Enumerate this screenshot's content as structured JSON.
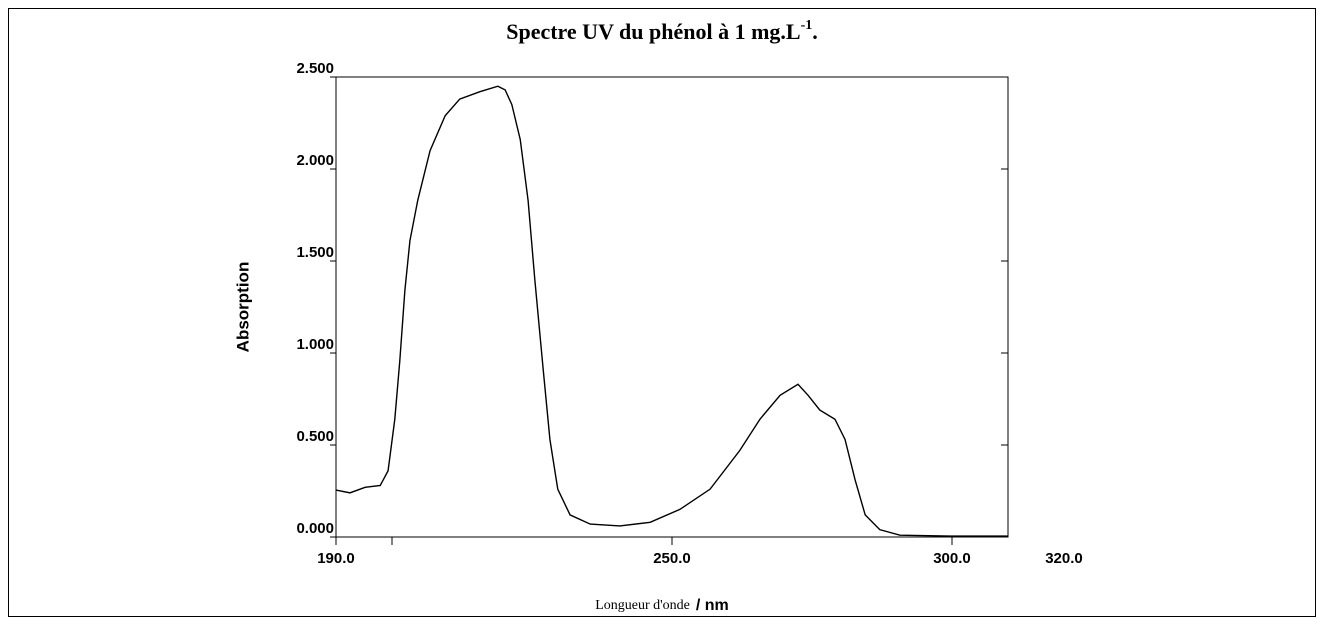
{
  "chart_data": {
    "type": "line",
    "title": {
      "text": "Spectre UV du phénol à 1 mg.L",
      "superscript": "-1",
      "end": "."
    },
    "xlabel": {
      "text": "Longueur d'onde",
      "unit": "/ nm"
    },
    "ylabel": "Absorption",
    "x": [
      190.0,
      192.5,
      195.2,
      197.9,
      199.3,
      200.5,
      201.4,
      202.3,
      203.2,
      204.6,
      206.8,
      209.5,
      212.1,
      215.7,
      218.9,
      220.2,
      221.4,
      222.9,
      224.3,
      225.5,
      227.0,
      228.2,
      229.6,
      231.8,
      235.4,
      240.7,
      246.1,
      251.4,
      256.8,
      262.1,
      265.7,
      269.3,
      272.5,
      274.3,
      276.4,
      279.1,
      280.9,
      282.7,
      284.5,
      287.1,
      290.7,
      299.6,
      310.0
    ],
    "series": [
      {
        "name": "phénol",
        "color": "#000000",
        "values": [
          0.255,
          0.24,
          0.27,
          0.28,
          0.36,
          0.64,
          0.96,
          1.34,
          1.61,
          1.83,
          2.1,
          2.29,
          2.38,
          2.42,
          2.45,
          2.43,
          2.35,
          2.16,
          1.83,
          1.4,
          0.91,
          0.53,
          0.26,
          0.12,
          0.07,
          0.06,
          0.08,
          0.15,
          0.26,
          0.47,
          0.64,
          0.77,
          0.83,
          0.77,
          0.69,
          0.64,
          0.53,
          0.31,
          0.12,
          0.04,
          0.01,
          0.005,
          0.005
        ]
      }
    ],
    "xlim": [
      190,
      310
    ],
    "xticks": [
      {
        "value": 190,
        "label": "190.0"
      },
      {
        "value": 250,
        "label": "250.0"
      },
      {
        "value": 300,
        "label": "300.0"
      },
      {
        "value": 320,
        "label": "320.0"
      }
    ],
    "xminor_ticks": [
      200
    ],
    "ylim": [
      0,
      2.5
    ],
    "yticks": [
      {
        "value": 0,
        "label": "0.000"
      },
      {
        "value": 0.5,
        "label": "0.500"
      },
      {
        "value": 1,
        "label": "1.000"
      },
      {
        "value": 1.5,
        "label": "1.500"
      },
      {
        "value": 2,
        "label": "2.000"
      },
      {
        "value": 2.5,
        "label": "2.500"
      }
    ],
    "grid": false
  }
}
